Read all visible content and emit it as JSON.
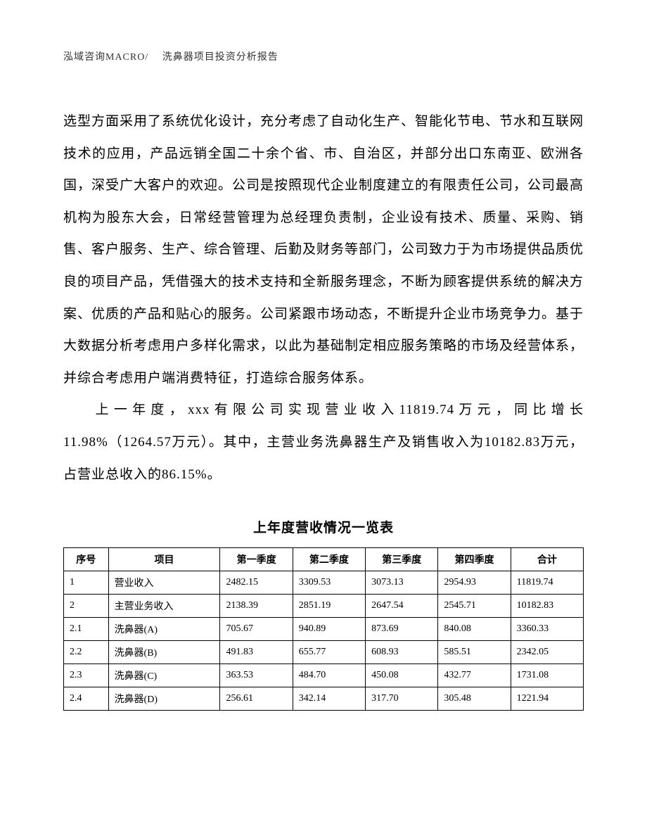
{
  "header": "泓域咨询MACRO/　 洗鼻器项目投资分析报告",
  "paragraph1": "选型方面采用了系统优化设计，充分考虑了自动化生产、智能化节电、节水和互联网技术的应用，产品远销全国二十余个省、市、自治区，并部分出口东南亚、欧洲各国，深受广大客户的欢迎。公司是按照现代企业制度建立的有限责任公司，公司最高机构为股东大会，日常经营管理为总经理负责制，企业设有技术、质量、采购、销售、客户服务、生产、综合管理、后勤及财务等部门，公司致力于为市场提供品质优良的项目产品，凭借强大的技术支持和全新服务理念，不断为顾客提供系统的解决方案、优质的产品和贴心的服务。公司紧跟市场动态，不断提升企业市场竞争力。基于大数据分析考虑用户多样化需求，以此为基础制定相应服务策略的市场及经营体系，并综合考虑用户端消费特征，打造综合服务体系。",
  "paragraph2": "上一年度，xxx有限公司实现营业收入11819.74万元，同比增长11.98%（1264.57万元）。其中，主营业务洗鼻器生产及销售收入为10182.83万元，占营业总收入的86.15%。",
  "table": {
    "title": "上年度营收情况一览表",
    "headers": [
      "序号",
      "项目",
      "第一季度",
      "第二季度",
      "第三季度",
      "第四季度",
      "合计"
    ],
    "rows": [
      [
        "1",
        "营业收入",
        "2482.15",
        "3309.53",
        "3073.13",
        "2954.93",
        "11819.74"
      ],
      [
        "2",
        "主营业务收入",
        "2138.39",
        "2851.19",
        "2647.54",
        "2545.71",
        "10182.83"
      ],
      [
        "2.1",
        "洗鼻器(A)",
        "705.67",
        "940.89",
        "873.69",
        "840.08",
        "3360.33"
      ],
      [
        "2.2",
        "洗鼻器(B)",
        "491.83",
        "655.77",
        "608.93",
        "585.51",
        "2342.05"
      ],
      [
        "2.3",
        "洗鼻器(C)",
        "363.53",
        "484.70",
        "450.08",
        "432.77",
        "1731.08"
      ],
      [
        "2.4",
        "洗鼻器(D)",
        "256.61",
        "342.14",
        "317.70",
        "305.48",
        "1221.94"
      ]
    ]
  },
  "colors": {
    "text": "#000000",
    "header_text": "#333333",
    "background": "#ffffff",
    "border": "#000000"
  },
  "typography": {
    "body_fontsize": 19,
    "header_fontsize": 14,
    "table_fontsize": 14,
    "line_height": 2.4,
    "font_family": "SimSun"
  }
}
